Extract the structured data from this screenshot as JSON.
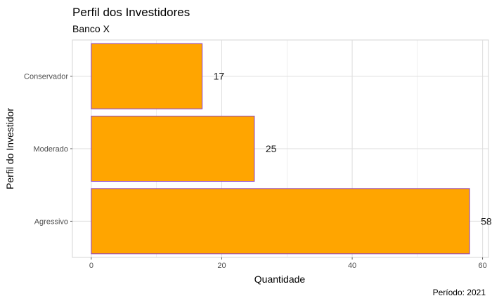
{
  "chart_data": {
    "type": "bar",
    "orientation": "horizontal",
    "title": "Perfil dos Investidores",
    "subtitle": "Banco X",
    "caption": "Período: 2021",
    "xlabel": "Quantidade",
    "ylabel": "Perfil do Investidor",
    "categories": [
      "Conservador",
      "Moderado",
      "Agressivo"
    ],
    "values": [
      17,
      25,
      58
    ],
    "data_labels": [
      "17",
      "25",
      "58"
    ],
    "xlim": [
      -2.9,
      60.9
    ],
    "xticks": [
      0,
      20,
      40,
      60
    ],
    "xtick_labels": [
      "0",
      "20",
      "40",
      "60"
    ],
    "grid": true,
    "colors": {
      "bar_fill": "#FFA500",
      "bar_stroke": "#8B3FC7",
      "grid": "#DEDEDE",
      "text": "#1a1a1a",
      "tick_text": "#4d4d4d"
    }
  }
}
